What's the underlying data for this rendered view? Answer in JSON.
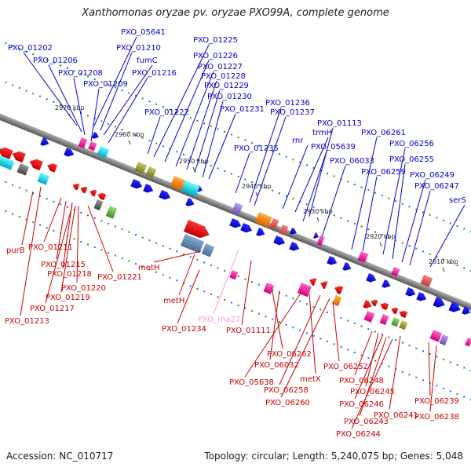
{
  "title": "Xanthomonas oryzae pv. oryzae PXO99A, complete genome",
  "footer": {
    "accession": "Accession: NC_010717",
    "summary": "Topology: circular; Length: 5,240,075 bp; Genes: 5,048"
  },
  "colors": {
    "backbone": "#808080",
    "plus_label": "#0000cc",
    "minus_label": "#cc0000",
    "rna_label": "#ff99cc",
    "dots": "#2e8b2e"
  },
  "ticks": [
    "2970 kbp",
    "2960 kbp",
    "2950 kbp",
    "2940 kbp",
    "2930 kbp",
    "2920 kbp",
    "2910 kbp"
  ],
  "top_labels": [
    {
      "text": "PXO_05641"
    },
    {
      "text": "PXO_01202"
    },
    {
      "text": "PXO_01210"
    },
    {
      "text": "PXO_01206"
    },
    {
      "text": "fumC"
    },
    {
      "text": "PXO_01208"
    },
    {
      "text": "PXO_01216"
    },
    {
      "text": "PXO_01209"
    },
    {
      "text": "PXO_01225"
    },
    {
      "text": "PXO_01226"
    },
    {
      "text": "PXO_01227"
    },
    {
      "text": "PXO_01228"
    },
    {
      "text": "PXO_01229"
    },
    {
      "text": "PXO_01230"
    },
    {
      "text": "PXO_01222"
    },
    {
      "text": "PXO_01231"
    },
    {
      "text": "PXO_01236"
    },
    {
      "text": "PXO_01237"
    },
    {
      "text": "PXO_01113"
    },
    {
      "text": "rnr"
    },
    {
      "text": "trmH"
    },
    {
      "text": "PXO_01235"
    },
    {
      "text": "PXO_05639"
    },
    {
      "text": "PXO_06261"
    },
    {
      "text": "PXO_06033"
    },
    {
      "text": "PXO_06256"
    },
    {
      "text": "PXO_06255"
    },
    {
      "text": "PXO_06259"
    },
    {
      "text": "PXO_06249"
    },
    {
      "text": "PXO_06247"
    },
    {
      "text": "serS"
    }
  ],
  "bottom_labels": [
    {
      "text": "purB"
    },
    {
      "text": "PXO_01211"
    },
    {
      "text": "PXO_01215"
    },
    {
      "text": "PXO_01218"
    },
    {
      "text": "PXO_01221"
    },
    {
      "text": "PXO_01220"
    },
    {
      "text": "PXO_01219"
    },
    {
      "text": "PXO_01217"
    },
    {
      "text": "PXO_01213"
    },
    {
      "text": "metH"
    },
    {
      "text": "metH"
    },
    {
      "text": "PXO_rna27"
    },
    {
      "text": "PXO_01234"
    },
    {
      "text": "PXO_01111"
    },
    {
      "text": "PXO_06262"
    },
    {
      "text": "PXO_06032"
    },
    {
      "text": "metX"
    },
    {
      "text": "PXO_06252"
    },
    {
      "text": "PXO_05638"
    },
    {
      "text": "PXO_06258"
    },
    {
      "text": "PXO_06248"
    },
    {
      "text": "PXO_06245"
    },
    {
      "text": "PXO_06260"
    },
    {
      "text": "PXO_06246"
    },
    {
      "text": "PXO_06239"
    },
    {
      "text": "PXO_06241"
    },
    {
      "text": "PXO_06238"
    },
    {
      "text": "PXO_06243"
    },
    {
      "text": "PXO_06244"
    }
  ]
}
